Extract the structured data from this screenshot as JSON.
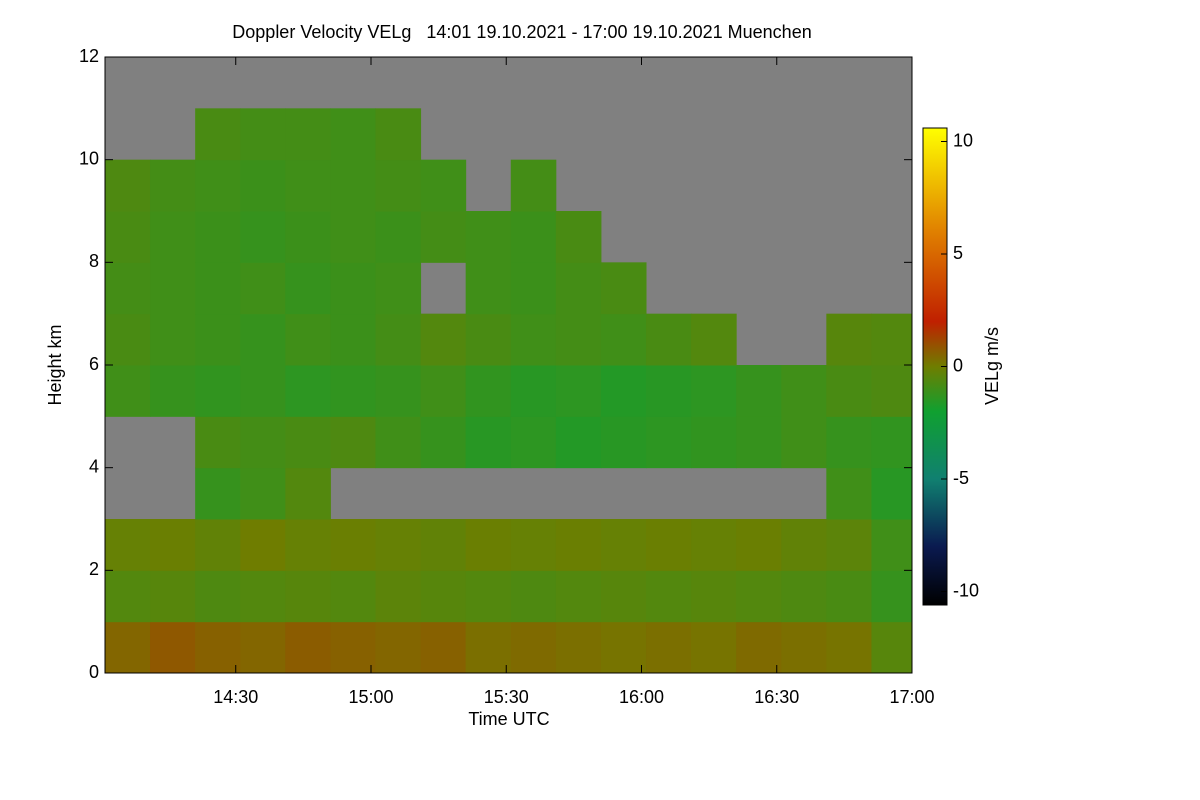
{
  "chart_data": {
    "type": "heatmap",
    "title": "Doppler Velocity VELg   14:01 19.10.2021 - 17:00 19.10.2021 Muenchen",
    "x_label": "Time UTC",
    "y_label": "Height km",
    "colorbar_label": "VELg m/s",
    "x_bins": [
      14.0167,
      14.1833,
      14.35,
      14.5167,
      14.6833,
      14.85,
      15.0167,
      15.1833,
      15.35,
      15.5167,
      15.6833,
      15.85,
      16.0167,
      16.1833,
      16.35,
      16.5167,
      16.6833,
      16.85,
      17.0
    ],
    "y_bins": [
      0,
      1,
      2,
      3,
      4,
      5,
      6,
      7,
      8,
      9,
      10,
      11,
      12
    ],
    "z": [
      [
        0.5,
        0.8,
        0.6,
        0.5,
        0.7,
        0.6,
        0.5,
        0.6,
        0.3,
        0.4,
        0.3,
        0.2,
        0.3,
        0.2,
        0.4,
        0.3,
        0.2,
        -0.5
      ],
      [
        -0.6,
        -0.5,
        -0.7,
        -0.6,
        -0.5,
        -0.6,
        -0.4,
        -0.5,
        -0.6,
        -0.7,
        -0.6,
        -0.5,
        -0.6,
        -0.5,
        -0.6,
        -0.7,
        -0.8,
        -1.2
      ],
      [
        -0.2,
        -0.1,
        -0.3,
        0.0,
        -0.2,
        -0.1,
        -0.2,
        -0.3,
        -0.1,
        -0.2,
        -0.1,
        -0.2,
        -0.1,
        -0.2,
        -0.1,
        -0.3,
        -0.4,
        -1.0
      ],
      [
        null,
        null,
        -1.2,
        -1.0,
        -0.6,
        null,
        null,
        null,
        null,
        null,
        null,
        null,
        null,
        null,
        null,
        null,
        -1.0,
        -1.5
      ],
      [
        null,
        null,
        -0.8,
        -0.9,
        -0.8,
        -0.7,
        -1.0,
        -1.2,
        -1.5,
        -1.4,
        -1.6,
        -1.5,
        -1.4,
        -1.3,
        -1.2,
        -1.0,
        -1.2,
        -1.3
      ],
      [
        -1.0,
        -1.2,
        -1.3,
        -1.2,
        -1.4,
        -1.3,
        -1.2,
        -1.0,
        -1.3,
        -1.5,
        -1.4,
        -1.6,
        -1.5,
        -1.4,
        -1.2,
        -1.0,
        -0.8,
        -0.7
      ],
      [
        -0.8,
        -1.0,
        -1.1,
        -1.2,
        -1.0,
        -1.1,
        -0.9,
        -0.6,
        -0.8,
        -1.0,
        -0.9,
        -1.0,
        -0.8,
        -0.6,
        null,
        null,
        -0.5,
        -0.6
      ],
      [
        -0.9,
        -1.0,
        -1.1,
        -1.0,
        -1.2,
        -1.1,
        -1.0,
        null,
        -1.0,
        -1.1,
        -0.9,
        -0.8,
        null,
        null,
        null,
        null,
        null,
        null
      ],
      [
        -0.8,
        -1.0,
        -1.1,
        -1.2,
        -1.1,
        -1.0,
        -1.1,
        -0.9,
        -1.0,
        -1.1,
        -0.8,
        null,
        null,
        null,
        null,
        null,
        null,
        null
      ],
      [
        -0.7,
        -0.9,
        -1.0,
        -1.1,
        -1.0,
        -1.0,
        -0.9,
        -1.0,
        null,
        -0.9,
        null,
        null,
        null,
        null,
        null,
        null,
        null,
        null
      ],
      [
        null,
        null,
        -0.8,
        -0.9,
        -0.9,
        -1.0,
        -0.8,
        null,
        null,
        null,
        null,
        null,
        null,
        null,
        null,
        null,
        null,
        null
      ],
      [
        null,
        null,
        null,
        null,
        null,
        null,
        null,
        null,
        null,
        null,
        null,
        null,
        null,
        null,
        null,
        null,
        null,
        null
      ]
    ],
    "xlim": [
      14.0167,
      17.0
    ],
    "xticks": [
      {
        "value": 14.5,
        "label": "14:30"
      },
      {
        "value": 15.0,
        "label": "15:00"
      },
      {
        "value": 15.5,
        "label": "15:30"
      },
      {
        "value": 16.0,
        "label": "16:00"
      },
      {
        "value": 16.5,
        "label": "16:30"
      },
      {
        "value": 17.0,
        "label": "17:00"
      }
    ],
    "ylim": [
      0,
      12
    ],
    "yticks": [
      0,
      2,
      4,
      6,
      8,
      10,
      12
    ],
    "clim": [
      -10.6,
      10.6
    ],
    "cticks": [
      -10,
      -5,
      0,
      5,
      10
    ],
    "nan_color": "#808080",
    "colorscale": [
      [
        -10.6,
        "#000000"
      ],
      [
        -8,
        "#0a1a50"
      ],
      [
        -5,
        "#108070"
      ],
      [
        -2,
        "#10a030"
      ],
      [
        0,
        "#6f7d00"
      ],
      [
        2,
        "#c02000"
      ],
      [
        6,
        "#e08000"
      ],
      [
        10.6,
        "#ffff00"
      ]
    ]
  }
}
